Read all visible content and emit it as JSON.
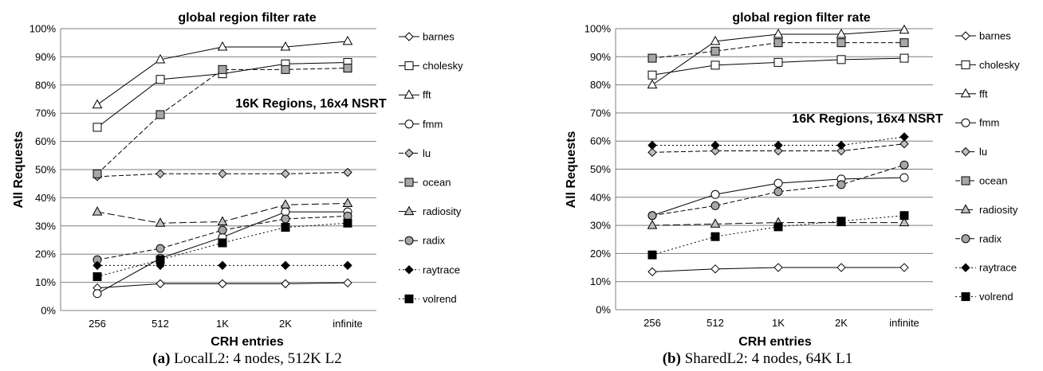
{
  "captions": [
    {
      "letter": "(a)",
      "text": " LocalL2: 4 nodes, 512K L2"
    },
    {
      "letter": "(b)",
      "text": " SharedL2: 4 nodes, 64K L1"
    }
  ],
  "chart_data": [
    {
      "type": "line",
      "title": "global region filter rate",
      "xlabel": "CRH entries",
      "ylabel": "All  Requests",
      "annotation": "16K Regions, 16x4 NSRT",
      "categories": [
        "256",
        "512",
        "1K",
        "2K",
        "infinite"
      ],
      "ylim": [
        0,
        100
      ],
      "yticks": [
        "0%",
        "10%",
        "20%",
        "30%",
        "40%",
        "50%",
        "60%",
        "70%",
        "80%",
        "90%",
        "100%"
      ],
      "grid": true,
      "legend_position": "right",
      "series": [
        {
          "name": "barnes",
          "marker": "diamond",
          "fill": "#ffffff",
          "dash": "solid",
          "values": [
            8,
            9.5,
            9.5,
            9.5,
            9.8
          ]
        },
        {
          "name": "cholesky",
          "marker": "square",
          "fill": "#ffffff",
          "dash": "solid",
          "values": [
            65,
            82,
            84,
            87.5,
            88
          ]
        },
        {
          "name": "fft",
          "marker": "triangle",
          "fill": "#ffffff",
          "dash": "solid",
          "values": [
            73,
            89,
            93.5,
            93.5,
            95.5
          ]
        },
        {
          "name": "fmm",
          "marker": "circle",
          "fill": "#ffffff",
          "dash": "solid",
          "values": [
            6,
            18.5,
            26,
            35,
            35
          ]
        },
        {
          "name": "lu",
          "marker": "diamond",
          "fill": "#bfbfbf",
          "dash": "dashed",
          "values": [
            47.5,
            48.5,
            48.5,
            48.5,
            49
          ]
        },
        {
          "name": "ocean",
          "marker": "square",
          "fill": "#a6a6a6",
          "dash": "dashed",
          "values": [
            48.5,
            69.5,
            85.5,
            85.5,
            86
          ]
        },
        {
          "name": "radiosity",
          "marker": "triangle",
          "fill": "#bfbfbf",
          "dash": "longdash",
          "values": [
            35,
            31,
            31.5,
            37.5,
            38
          ]
        },
        {
          "name": "radix",
          "marker": "circle",
          "fill": "#a6a6a6",
          "dash": "dashed",
          "values": [
            18,
            22,
            28.5,
            32.5,
            33.5
          ]
        },
        {
          "name": "raytrace",
          "marker": "diamond",
          "fill": "#000000",
          "dash": "dotted",
          "values": [
            16,
            16,
            16,
            16,
            16
          ]
        },
        {
          "name": "volrend",
          "marker": "square",
          "fill": "#000000",
          "dash": "dotted",
          "values": [
            12,
            18,
            24,
            29.5,
            31
          ]
        }
      ]
    },
    {
      "type": "line",
      "title": "global region filter rate",
      "xlabel": "CRH entries",
      "ylabel": "All  Requests",
      "annotation": "16K Regions, 16x4 NSRT",
      "categories": [
        "256",
        "512",
        "1K",
        "2K",
        "infinite"
      ],
      "ylim": [
        0,
        100
      ],
      "yticks": [
        "0%",
        "10%",
        "20%",
        "30%",
        "40%",
        "50%",
        "60%",
        "70%",
        "80%",
        "90%",
        "100%"
      ],
      "grid": true,
      "legend_position": "right",
      "series": [
        {
          "name": "barnes",
          "marker": "diamond",
          "fill": "#ffffff",
          "dash": "solid",
          "values": [
            13.5,
            14.5,
            15,
            15,
            15
          ]
        },
        {
          "name": "cholesky",
          "marker": "square",
          "fill": "#ffffff",
          "dash": "solid",
          "values": [
            83.5,
            87,
            88,
            89,
            89.5
          ]
        },
        {
          "name": "fft",
          "marker": "triangle",
          "fill": "#ffffff",
          "dash": "solid",
          "values": [
            80,
            95.5,
            98,
            98,
            99.5
          ]
        },
        {
          "name": "fmm",
          "marker": "circle",
          "fill": "#ffffff",
          "dash": "solid",
          "values": [
            33.5,
            41,
            45,
            46.5,
            47
          ]
        },
        {
          "name": "lu",
          "marker": "diamond",
          "fill": "#bfbfbf",
          "dash": "dashed",
          "values": [
            56,
            56.5,
            56.5,
            56.5,
            59
          ]
        },
        {
          "name": "ocean",
          "marker": "square",
          "fill": "#a6a6a6",
          "dash": "dashed",
          "values": [
            89.5,
            92,
            95,
            95,
            95
          ]
        },
        {
          "name": "radiosity",
          "marker": "triangle",
          "fill": "#bfbfbf",
          "dash": "longdash",
          "values": [
            30,
            30.5,
            31,
            31,
            31
          ]
        },
        {
          "name": "radix",
          "marker": "circle",
          "fill": "#a6a6a6",
          "dash": "dashed",
          "values": [
            33.5,
            37,
            42,
            44.5,
            51.5
          ]
        },
        {
          "name": "raytrace",
          "marker": "diamond",
          "fill": "#000000",
          "dash": "dotted",
          "values": [
            58.5,
            58.5,
            58.5,
            58.5,
            61.5
          ]
        },
        {
          "name": "volrend",
          "marker": "square",
          "fill": "#000000",
          "dash": "dotted",
          "values": [
            19.5,
            26,
            29.5,
            31.5,
            33.5
          ]
        }
      ]
    }
  ]
}
